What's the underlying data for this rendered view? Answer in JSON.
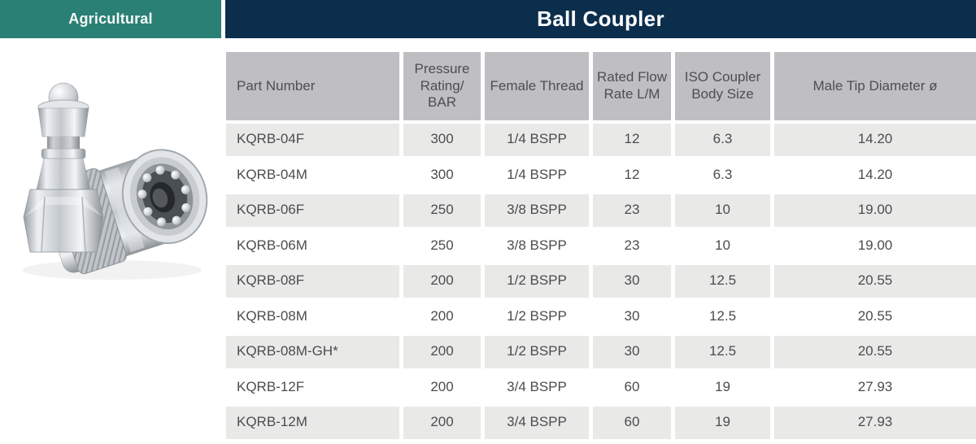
{
  "banner": {
    "category_label": "Agricultural",
    "title": "Ball Coupler",
    "category_bg": "#2a8074",
    "title_bg": "#0c2e4d"
  },
  "product_image": {
    "name": "ball-coupler-product-photo",
    "description": "Two zinc-plated quick-release ball couplers: male tip standing upright, female coupler body angled showing internal ball bearings"
  },
  "table": {
    "columns": [
      "Part Number",
      "Pressure Rating/ BAR",
      "Female Thread",
      "Rated Flow Rate L/M",
      "ISO Coupler Body Size",
      "Male Tip Diameter ø"
    ],
    "column_keys": [
      "part-number",
      "pressure-rating-bar",
      "female-thread",
      "rated-flow-rate",
      "iso-coupler-body-size",
      "male-tip-diameter"
    ],
    "rows": [
      [
        "KQRB-04F",
        "300",
        "1/4 BSPP",
        "12",
        "6.3",
        "14.20"
      ],
      [
        "KQRB-04M",
        "300",
        "1/4 BSPP",
        "12",
        "6.3",
        "14.20"
      ],
      [
        "KQRB-06F",
        "250",
        "3/8 BSPP",
        "23",
        "10",
        "19.00"
      ],
      [
        "KQRB-06M",
        "250",
        "3/8 BSPP",
        "23",
        "10",
        "19.00"
      ],
      [
        "KQRB-08F",
        "200",
        "1/2 BSPP",
        "30",
        "12.5",
        "20.55"
      ],
      [
        "KQRB-08M",
        "200",
        "1/2 BSPP",
        "30",
        "12.5",
        "20.55"
      ],
      [
        "KQRB-08M-GH*",
        "200",
        "1/2 BSPP",
        "30",
        "12.5",
        "20.55"
      ],
      [
        "KQRB-12F",
        "200",
        "3/4 BSPP",
        "60",
        "19",
        "27.93"
      ],
      [
        "KQRB-12M",
        "200",
        "3/4 BSPP",
        "60",
        "19",
        "27.93"
      ]
    ]
  },
  "colors": {
    "header_cell_bg": "#bfbfc3",
    "row_alt_bg": "#e9eae8",
    "text": "#4b4c4e",
    "banner_text": "#ffffff"
  }
}
